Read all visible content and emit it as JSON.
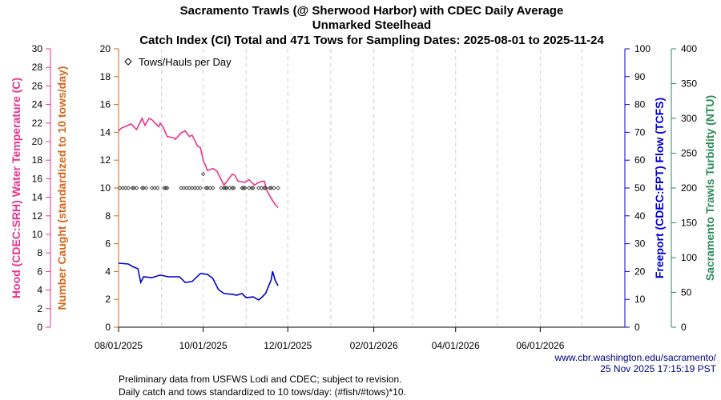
{
  "chart_data": {
    "type": "line",
    "title_lines": [
      "Sacramento Trawls (@ Sherwood Harbor) with CDEC Daily Average",
      "Unmarked Steelhead",
      "Catch Index (CI) Total and 471 Tows for Sampling Dates: 2025-08-01 to 2025-11-24"
    ],
    "x_axis": {
      "range": [
        "2025-08-01",
        "2026-08-01"
      ],
      "tick_labels": [
        "08/01/2025",
        "10/01/2025",
        "12/01/2025",
        "02/01/2026",
        "04/01/2026",
        "06/01/2026"
      ],
      "tick_dates": [
        "2025-08-01",
        "2025-10-01",
        "2025-12-01",
        "2026-02-01",
        "2026-04-01",
        "2026-06-01"
      ],
      "grid": "monthly dashed"
    },
    "axes": {
      "temperature": {
        "label": "Hood (CDEC:SRH) Water Temperature (C)",
        "range": [
          0,
          30
        ],
        "step": 2,
        "color": "#e8338a",
        "side": "left-outer"
      },
      "catch": {
        "label": "Number Caught (standardized to 10 tows/day)",
        "range": [
          0,
          20
        ],
        "step": 2,
        "color": "#d2691e",
        "side": "left-inner"
      },
      "flow": {
        "label": "Freeport (CDEC:FPT) Flow (TCFS)",
        "range": [
          0,
          100
        ],
        "step": 10,
        "color": "#0000cc",
        "side": "right-inner"
      },
      "turbidity": {
        "label": "Sacramento Trawls Turbidity (NTU)",
        "range": [
          0,
          400
        ],
        "step": 50,
        "color": "#2e8b57",
        "side": "right-outer"
      }
    },
    "legend": {
      "entries": [
        "Tows/Hauls per Day"
      ],
      "placement": "top-left",
      "symbol": "diamond"
    },
    "series": [
      {
        "axis": "catch",
        "kind": "line",
        "color": "#e8338a",
        "points": [
          [
            "2025-08-01",
            14.1
          ],
          [
            "2025-08-03",
            14.3
          ],
          [
            "2025-08-10",
            14.6
          ],
          [
            "2025-08-14",
            14.2
          ],
          [
            "2025-08-18",
            15.0
          ],
          [
            "2025-08-20",
            14.5
          ],
          [
            "2025-08-23",
            15.0
          ],
          [
            "2025-08-25",
            14.9
          ],
          [
            "2025-08-30",
            14.4
          ],
          [
            "2025-08-31",
            14.65
          ],
          [
            "2025-09-02",
            14.4
          ],
          [
            "2025-09-05",
            13.7
          ],
          [
            "2025-09-10",
            13.6
          ],
          [
            "2025-09-11",
            13.5
          ],
          [
            "2025-09-15",
            13.95
          ],
          [
            "2025-09-18",
            14.1
          ],
          [
            "2025-09-21",
            13.7
          ],
          [
            "2025-09-23",
            13.8
          ],
          [
            "2025-09-27",
            13.0
          ],
          [
            "2025-09-29",
            12.9
          ],
          [
            "2025-10-01",
            12.0
          ],
          [
            "2025-10-03",
            11.55
          ],
          [
            "2025-10-04",
            11.26
          ],
          [
            "2025-10-08",
            11.4
          ],
          [
            "2025-10-11",
            11.2
          ],
          [
            "2025-10-16",
            10.2
          ],
          [
            "2025-10-22",
            11.0
          ],
          [
            "2025-10-24",
            10.9
          ],
          [
            "2025-10-26",
            10.5
          ],
          [
            "2025-10-31",
            10.4
          ],
          [
            "2025-11-03",
            10.6
          ],
          [
            "2025-11-07",
            10.2
          ],
          [
            "2025-11-10",
            10.4
          ],
          [
            "2025-11-14",
            10.5
          ],
          [
            "2025-11-16",
            9.8
          ],
          [
            "2025-11-19",
            9.25
          ],
          [
            "2025-11-22",
            8.8
          ],
          [
            "2025-11-24",
            8.6
          ]
        ]
      },
      {
        "axis": "flow",
        "kind": "line",
        "color": "#0000cc",
        "points": [
          [
            "2025-08-01",
            23.0
          ],
          [
            "2025-08-08",
            22.7
          ],
          [
            "2025-08-11",
            21.8
          ],
          [
            "2025-08-15",
            21.0
          ],
          [
            "2025-08-17",
            16.1
          ],
          [
            "2025-08-19",
            18.1
          ],
          [
            "2025-08-25",
            17.8
          ],
          [
            "2025-08-31",
            18.7
          ],
          [
            "2025-09-06",
            18.1
          ],
          [
            "2025-09-14",
            18.1
          ],
          [
            "2025-09-18",
            16.1
          ],
          [
            "2025-09-23",
            16.4
          ],
          [
            "2025-09-29",
            19.3
          ],
          [
            "2025-10-04",
            19.0
          ],
          [
            "2025-10-08",
            17.5
          ],
          [
            "2025-10-12",
            13.5
          ],
          [
            "2025-10-16",
            12.1
          ],
          [
            "2025-10-22",
            11.8
          ],
          [
            "2025-10-25",
            11.5
          ],
          [
            "2025-10-29",
            12.1
          ],
          [
            "2025-11-01",
            10.6
          ],
          [
            "2025-11-06",
            10.9
          ],
          [
            "2025-11-10",
            9.8
          ],
          [
            "2025-11-12",
            10.6
          ],
          [
            "2025-11-15",
            12.1
          ],
          [
            "2025-11-19",
            17.0
          ],
          [
            "2025-11-20",
            20.1
          ],
          [
            "2025-11-22",
            16.7
          ],
          [
            "2025-11-24",
            14.9
          ]
        ]
      },
      {
        "name": "Tows/Hauls per Day",
        "axis": "catch",
        "kind": "scatter",
        "color": "#333333",
        "points": [
          [
            "2025-08-02",
            10
          ],
          [
            "2025-08-04",
            10
          ],
          [
            "2025-08-06",
            10
          ],
          [
            "2025-08-08",
            10
          ],
          [
            "2025-08-11",
            10
          ],
          [
            "2025-08-12",
            10
          ],
          [
            "2025-08-14",
            10
          ],
          [
            "2025-08-18",
            10
          ],
          [
            "2025-08-19",
            10
          ],
          [
            "2025-08-21",
            10
          ],
          [
            "2025-08-25",
            10
          ],
          [
            "2025-08-27",
            10
          ],
          [
            "2025-08-29",
            10
          ],
          [
            "2025-09-03",
            10
          ],
          [
            "2025-09-04",
            10
          ],
          [
            "2025-09-05",
            10
          ],
          [
            "2025-09-15",
            10
          ],
          [
            "2025-09-17",
            10
          ],
          [
            "2025-09-19",
            10
          ],
          [
            "2025-09-21",
            10
          ],
          [
            "2025-09-23",
            10
          ],
          [
            "2025-09-25",
            10
          ],
          [
            "2025-09-27",
            10
          ],
          [
            "2025-09-29",
            10
          ],
          [
            "2025-10-01",
            11
          ],
          [
            "2025-10-03",
            10
          ],
          [
            "2025-10-04",
            10
          ],
          [
            "2025-10-06",
            10
          ],
          [
            "2025-10-08",
            10
          ],
          [
            "2025-10-14",
            10
          ],
          [
            "2025-10-16",
            10
          ],
          [
            "2025-10-17",
            10
          ],
          [
            "2025-10-18",
            10
          ],
          [
            "2025-10-20",
            10
          ],
          [
            "2025-10-22",
            10
          ],
          [
            "2025-10-23",
            10
          ],
          [
            "2025-10-29",
            10
          ],
          [
            "2025-10-30",
            10
          ],
          [
            "2025-10-31",
            10
          ],
          [
            "2025-11-03",
            10
          ],
          [
            "2025-11-05",
            10
          ],
          [
            "2025-11-06",
            10
          ],
          [
            "2025-11-10",
            10
          ],
          [
            "2025-11-12",
            10
          ],
          [
            "2025-11-14",
            10
          ],
          [
            "2025-11-15",
            10
          ],
          [
            "2025-11-18",
            10
          ],
          [
            "2025-11-19",
            10
          ],
          [
            "2025-11-21",
            10
          ],
          [
            "2025-11-24",
            10
          ]
        ]
      }
    ]
  },
  "footer": {
    "url": "www.cbr.washington.edu/sacramento/",
    "timestamp": "25 Nov 2025 17:15:19 PST",
    "note1": "Preliminary data from USFWS Lodi and CDEC; subject to revision.",
    "note2": "Daily catch and tows standardized to 10 tows/day: (#fish/#tows)*10."
  }
}
